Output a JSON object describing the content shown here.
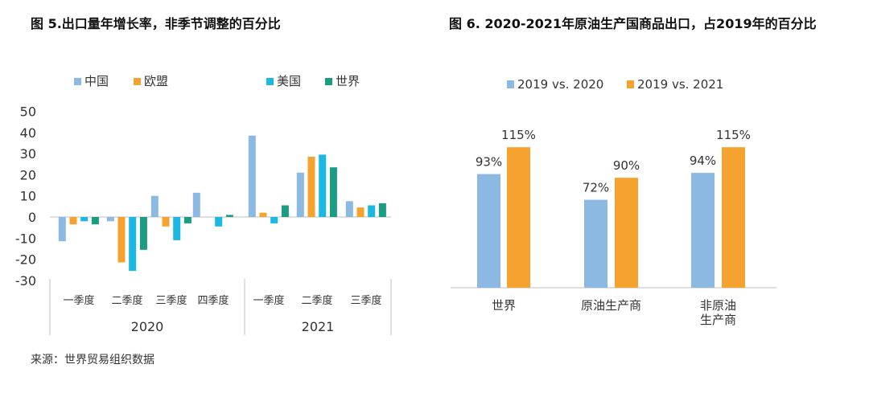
{
  "figure5": {
    "title": "图 5.出口量年增长率，非季节调整的百分比",
    "legend_left": [
      "中国",
      "欧盟"
    ],
    "legend_right": [
      "美国",
      "世界"
    ]
  },
  "figure6": {
    "title": "图 6. 2020-2021年原油生产国商品出口，占2019年的百分比"
  },
  "source": "来源：世界贸易组织数据",
  "colors": {
    "china": "#8bb9e2",
    "eu": "#f5a22e",
    "us": "#1ab8e3",
    "world": "#1a9c85",
    "v2020": "#8bb9e2",
    "v2021": "#f5a22e",
    "axis": "#bfbfbf"
  },
  "chart_data": [
    {
      "type": "bar",
      "ylim": [
        -30,
        50
      ],
      "yticks": [
        50,
        40,
        30,
        20,
        10,
        0,
        -10,
        -20,
        -30
      ],
      "categories": [
        "一季度",
        "二季度",
        "三季度",
        "四季度",
        "一季度",
        "二季度",
        "三季度"
      ],
      "groups": [
        {
          "label": "2020",
          "count": 4
        },
        {
          "label": "2021",
          "count": 3
        }
      ],
      "series": [
        {
          "name": "中国",
          "values": [
            -11.5,
            -2,
            10,
            11.5,
            38.5,
            21,
            7.5
          ]
        },
        {
          "name": "欧盟",
          "values": [
            -3.5,
            -21.5,
            -4.5,
            0,
            2,
            28.5,
            4.5
          ]
        },
        {
          "name": "美国",
          "values": [
            -2,
            -25.5,
            -11,
            -4.5,
            -3,
            29.5,
            5.5
          ]
        },
        {
          "name": "世界",
          "values": [
            -3.5,
            -15.5,
            -3,
            1,
            5.5,
            23.5,
            6.5
          ]
        }
      ]
    },
    {
      "type": "bar",
      "ylim": [
        0,
        140
      ],
      "categories": [
        "世界",
        "原油生产商",
        "非原油\n生产商"
      ],
      "series": [
        {
          "name": "2019 vs. 2020",
          "values": [
            93,
            72,
            94
          ]
        },
        {
          "name": "2019 vs. 2021",
          "values": [
            115,
            90,
            115
          ]
        }
      ],
      "data_labels": [
        [
          "93%",
          "72%",
          "94%"
        ],
        [
          "115%",
          "90%",
          "115%"
        ]
      ]
    }
  ]
}
